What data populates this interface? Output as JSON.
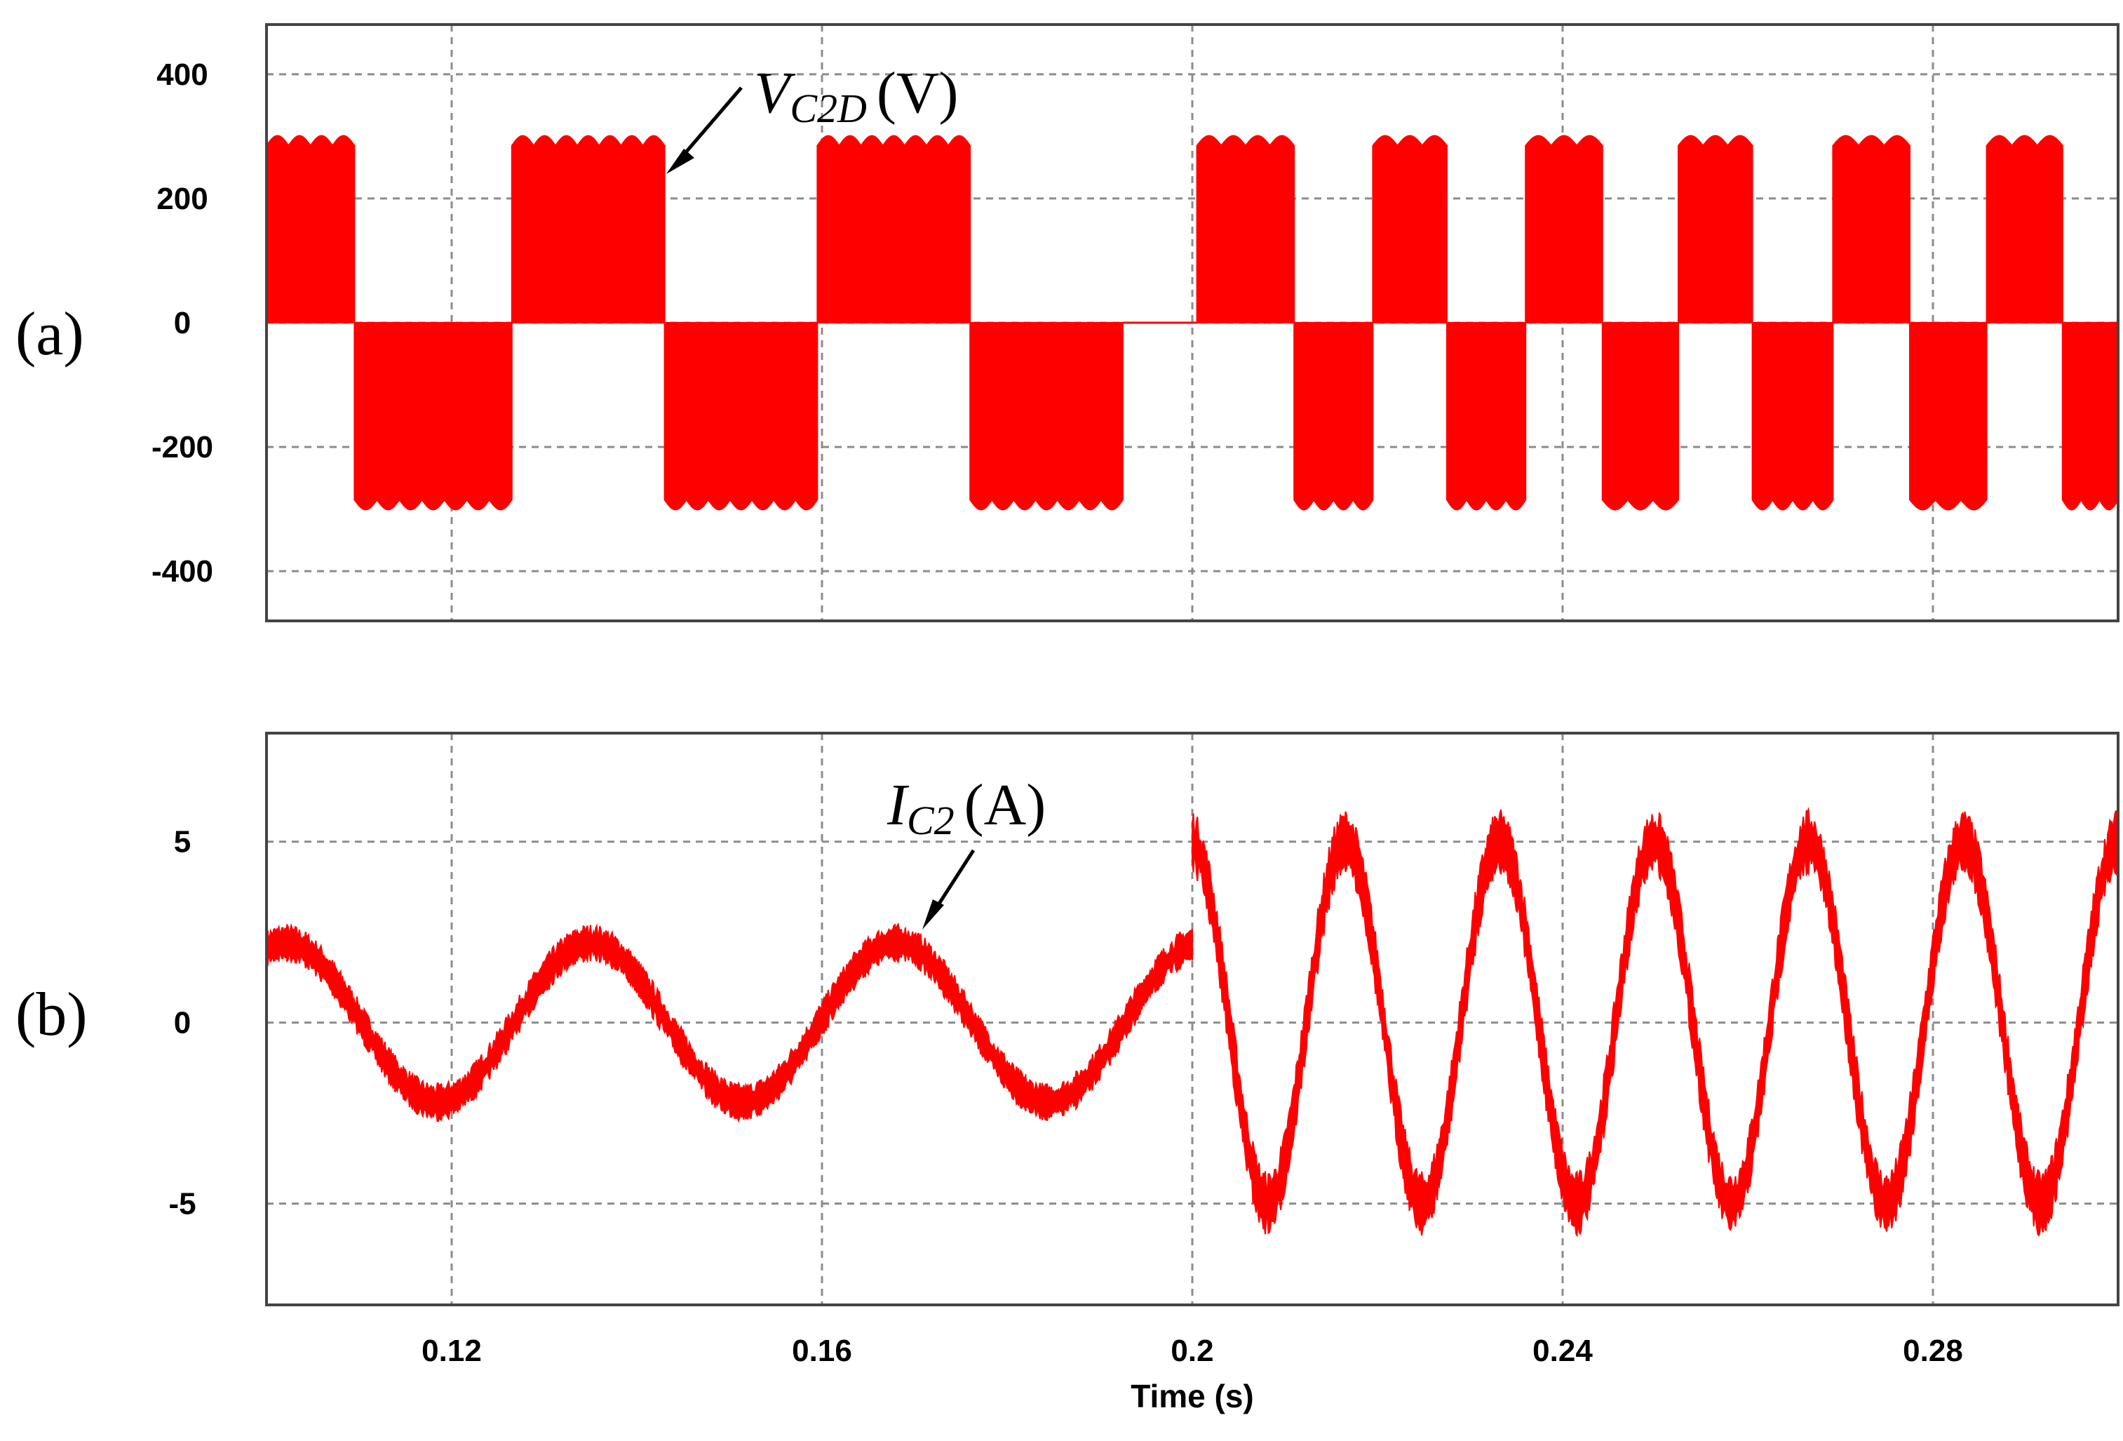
{
  "colors": {
    "trace": "#ff0000",
    "grid": "#8c8c8c",
    "frame": "#444444"
  },
  "chart_data": [
    {
      "type": "line",
      "panel_label": "(a)",
      "annotation": {
        "main": "V",
        "sub": "C2D",
        "unit": "(V)"
      },
      "xlabel": "",
      "ylabel": "",
      "xlim": [
        0.1,
        0.3
      ],
      "ylim": [
        -480,
        480
      ],
      "yticks": [
        400,
        200,
        0,
        -200,
        -400
      ],
      "ytick_labels": [
        "400",
        "200",
        "0",
        "-200",
        "-400"
      ],
      "xticks": [
        0.12,
        0.16,
        0.2,
        0.24,
        0.28
      ],
      "grid": true,
      "amplitude": 300,
      "ripple": 16,
      "series": [
        {
          "name": "V_C2D",
          "segments": [
            {
              "start": 0.1,
              "end": 0.1095,
              "sign": 1
            },
            {
              "start": 0.1095,
              "end": 0.1265,
              "sign": -1
            },
            {
              "start": 0.1265,
              "end": 0.143,
              "sign": 1
            },
            {
              "start": 0.143,
              "end": 0.1595,
              "sign": -1
            },
            {
              "start": 0.1595,
              "end": 0.176,
              "sign": 1
            },
            {
              "start": 0.176,
              "end": 0.1925,
              "sign": -1
            },
            {
              "start": 0.1925,
              "end": 0.2005,
              "sign": 0
            },
            {
              "start": 0.2005,
              "end": 0.211,
              "sign": 1
            },
            {
              "start": 0.211,
              "end": 0.2195,
              "sign": -1
            },
            {
              "start": 0.2195,
              "end": 0.2275,
              "sign": 1
            },
            {
              "start": 0.2275,
              "end": 0.236,
              "sign": -1
            },
            {
              "start": 0.236,
              "end": 0.2443,
              "sign": 1
            },
            {
              "start": 0.2443,
              "end": 0.2525,
              "sign": -1
            },
            {
              "start": 0.2525,
              "end": 0.2605,
              "sign": 1
            },
            {
              "start": 0.2605,
              "end": 0.2692,
              "sign": -1
            },
            {
              "start": 0.2692,
              "end": 0.2775,
              "sign": 1
            },
            {
              "start": 0.2775,
              "end": 0.2858,
              "sign": -1
            },
            {
              "start": 0.2858,
              "end": 0.294,
              "sign": 1
            },
            {
              "start": 0.294,
              "end": 0.3,
              "sign": -1
            }
          ]
        }
      ]
    },
    {
      "type": "line",
      "panel_label": "(b)",
      "annotation": {
        "main": "I",
        "sub": "C2",
        "unit": "(A)"
      },
      "xlabel": "Time (s)",
      "ylabel": "",
      "xlim": [
        0.1,
        0.3
      ],
      "ylim": [
        -7.8,
        8.0
      ],
      "yticks": [
        5,
        0,
        -5
      ],
      "ytick_labels": [
        "5",
        "0",
        "-5"
      ],
      "xticks": [
        0.12,
        0.16,
        0.2,
        0.24,
        0.28
      ],
      "xtick_labels": [
        "0.12",
        "0.16",
        "0.2",
        "0.24",
        "0.28"
      ],
      "grid": true,
      "series": [
        {
          "name": "I_C2",
          "segments": [
            {
              "start": 0.1,
              "end": 0.2,
              "amplitude": 2.2,
              "period": 0.033,
              "peak_at": 0.135,
              "band": 0.35
            },
            {
              "start": 0.2,
              "end": 0.3,
              "amplitude": 5.0,
              "period": 0.0167,
              "peak_at": 0.2165,
              "band": 0.6
            }
          ]
        }
      ]
    }
  ]
}
